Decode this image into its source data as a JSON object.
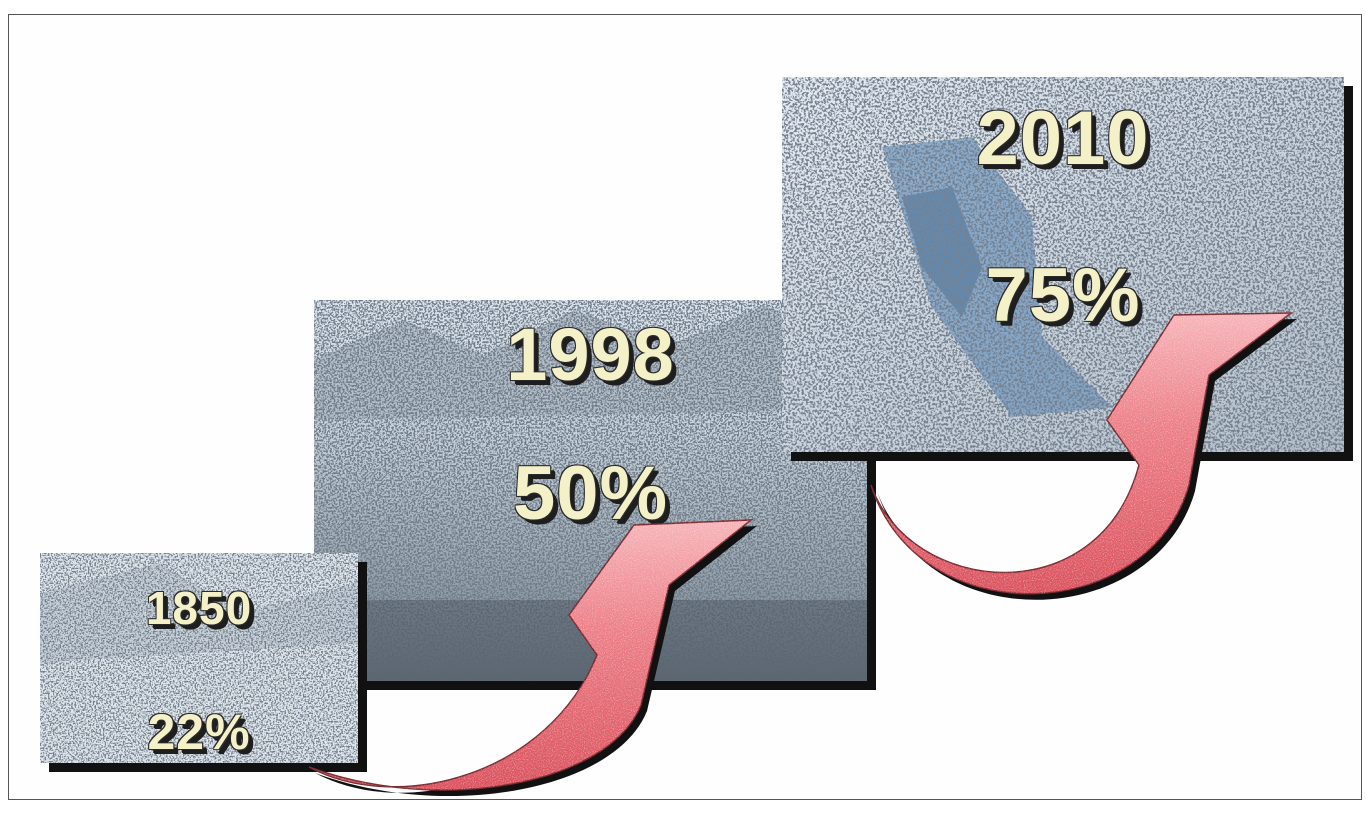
{
  "panels": [
    {
      "year": "1850",
      "percent": "22%"
    },
    {
      "year": "1998",
      "percent": "50%"
    },
    {
      "year": "2010",
      "percent": "75%"
    }
  ],
  "colors": {
    "arrow_fill": "#ec7e86",
    "arrow_highlight": "#f6b4b9",
    "label_text": "#f4f1c8",
    "shadow": "#111111",
    "photo_dark": "#2c3640",
    "photo_light": "#e6ecf2",
    "photo_blue": "#5f8fbf"
  },
  "icons": [
    "curved-growth-arrow"
  ]
}
